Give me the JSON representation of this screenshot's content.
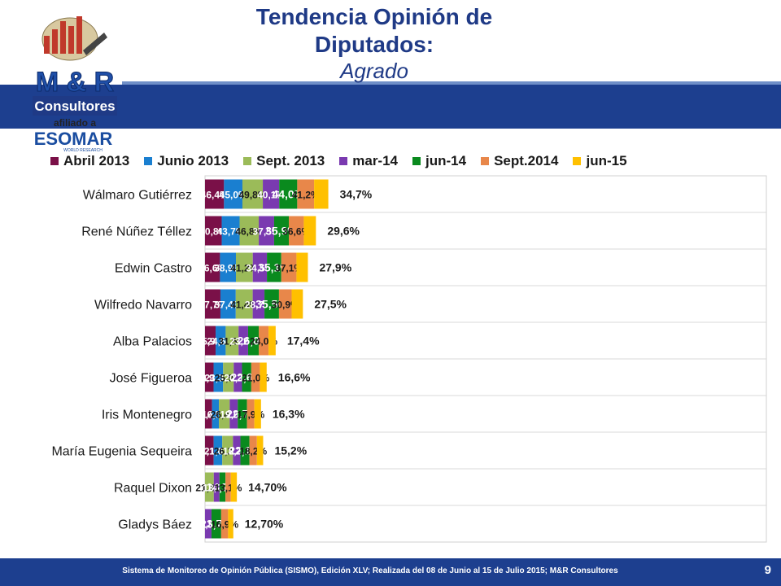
{
  "header": {
    "title_line1": "Tendencia Opinión de",
    "title_line2": "Diputados:",
    "subtitle": "Agrado"
  },
  "logo": {
    "brand": "M & R",
    "name": "Consultores",
    "affiliation": "afiliado a",
    "partner": "ESOMAR",
    "partner_tag": "WORLD RESEARCH"
  },
  "colors": {
    "band": "#1d3f8f",
    "title": "#1f3a86"
  },
  "chart_data": {
    "type": "bar",
    "orientation": "horizontal",
    "stacked": true,
    "legend_position": "top",
    "grid": true,
    "categories": [
      "Wálmaro Gutiérrez",
      "René Núñez Téllez",
      "Edwin Castro",
      "Wilfredo Navarro",
      "Alba Palacios",
      "José Figueroa",
      "Iris Montenegro",
      "María Eugenia Sequeira",
      "Raquel Dixon",
      "Gladys Báez"
    ],
    "series": [
      {
        "name": "Abril 2013",
        "color": "#7a1048",
        "values": [
          46.4,
          40.8,
          36.6,
          37.7,
          25.9,
          20.9,
          17.4,
          21.1,
          null,
          null
        ],
        "labels": [
          "46,4%",
          "40,8%",
          "36,6%",
          "37,7%",
          "25,9%",
          "20,9%",
          "17,4%",
          "21,1%",
          "",
          ""
        ]
      },
      {
        "name": "Junio 2013",
        "color": "#1a7fd0",
        "values": [
          45.0,
          43.7,
          38.9,
          37.4,
          24.6,
          23.3,
          16.5,
          21.0,
          null,
          null
        ],
        "labels": [
          "45,0%",
          "43,7%",
          "38,9%",
          "37,4%",
          "24,6%",
          "23,3%",
          "16,5%",
          "21,0%",
          "",
          ""
        ]
      },
      {
        "name": "Sept. 2013",
        "color": "#9bbb59",
        "values": [
          49.8,
          46.8,
          41.2,
          41.4,
          31.5,
          25.9,
          26.4,
          26.2,
          21.4,
          null
        ],
        "labels": [
          "49,8%",
          "46,8%",
          "41,2%",
          "41,4%",
          "31,5%",
          "25,9%",
          "26,4%",
          "26,2%",
          "21,4%",
          ""
        ]
      },
      {
        "name": "mar-14",
        "color": "#7a3ab0",
        "values": [
          40.1,
          37.5,
          34.5,
          28.7,
          23.2,
          20.3,
          19.6,
          18.2,
          13.9,
          15.8
        ],
        "labels": [
          "40,1%",
          "37,5%",
          "34,5%",
          "28,7%",
          "23,2%",
          "20,3%",
          "19,6%",
          "18,2%",
          "13,9%",
          "15,8%"
        ]
      },
      {
        "name": "jun-14",
        "color": "#0a8a1e",
        "values": [
          44.0,
          35.9,
          35.1,
          35.5,
          26.0,
          22.6,
          22.7,
          22.1,
          14.7,
          23.7
        ],
        "labels": [
          "44,0%",
          "35,9%",
          "35,1%",
          "35,5%",
          "26,0%",
          "22,6%",
          "22,7%",
          "22,1%",
          "14,7%",
          "23,7%"
        ]
      },
      {
        "name": "Sept.2014",
        "color": "#e8874a",
        "values": [
          41.2,
          36.6,
          37.1,
          30.9,
          24.0,
          21.0,
          17.9,
          18.2,
          13.1,
          16.9
        ],
        "labels": [
          "41,2%",
          "36,6%",
          "37,1%",
          "30,9%",
          "24,0%",
          "21,0%",
          "17,9%",
          "18,2%",
          "13,1%",
          "16,9%"
        ]
      },
      {
        "name": "jun-15",
        "color": "#ffc000",
        "values": [
          34.7,
          29.6,
          27.9,
          27.5,
          17.4,
          16.6,
          16.3,
          15.2,
          14.7,
          12.7
        ],
        "labels": [
          "34,7%",
          "29,6%",
          "27,9%",
          "27,5%",
          "17,4%",
          "16,6%",
          "16,3%",
          "15,2%",
          "14,70%",
          "12,70%"
        ]
      }
    ]
  },
  "footer": {
    "text": "Sistema de Monitoreo de Opinión Pública (SISMO), Edición XLV; Realizada del 08 de Junio al 15 de Julio 2015; M&R Consultores",
    "page": "9"
  }
}
